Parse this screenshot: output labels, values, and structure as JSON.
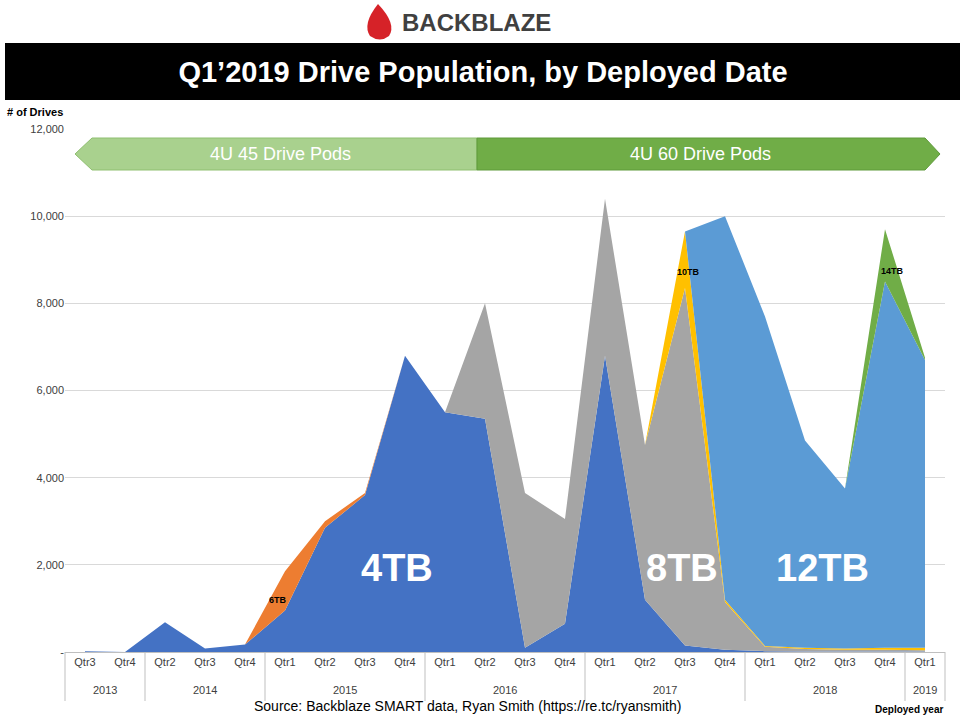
{
  "chart_data": {
    "type": "area",
    "title": "Q1’2019 Drive Population, by Deployed Date",
    "brand": "BACKBLAZE",
    "source": "Source: Backblaze SMART data, Ryan Smith (https://re.tc/ryansmith)",
    "annotations": [
      "4U 45 Drive Pods",
      "4U 60 Drive Pods"
    ],
    "y_label": "# of Drives",
    "x_label": "Deployed year",
    "categories": [
      "Qtr3",
      "Qtr4",
      "Qtr2",
      "Qtr3",
      "Qtr4",
      "Qtr1",
      "Qtr2",
      "Qtr3",
      "Qtr4",
      "Qtr1",
      "Qtr2",
      "Qtr3",
      "Qtr4",
      "Qtr1",
      "Qtr2",
      "Qtr3",
      "Qtr4",
      "Qtr1",
      "Qtr2",
      "Qtr3",
      "Qtr4",
      "Qtr1"
    ],
    "category_groups": [
      "2013",
      "2013",
      "2014",
      "2014",
      "2014",
      "2015",
      "2015",
      "2015",
      "2015",
      "2016",
      "2016",
      "2016",
      "2016",
      "2017",
      "2017",
      "2017",
      "2017",
      "2018",
      "2018",
      "2018",
      "2018",
      "2019"
    ],
    "stacked": true,
    "grid": true,
    "ylim": [
      0,
      12000
    ],
    "yticks": [
      {
        "value": 0,
        "label": "-"
      },
      {
        "value": 2000,
        "label": "2,000"
      },
      {
        "value": 4000,
        "label": "4,000"
      },
      {
        "value": 6000,
        "label": "6,000"
      },
      {
        "value": 8000,
        "label": "8,000"
      },
      {
        "value": 10000,
        "label": "10,000"
      },
      {
        "value": 12000,
        "label": "12,000"
      }
    ],
    "series": [
      {
        "name": "4TB",
        "color": "#4472c4",
        "values": [
          20,
          0,
          680,
          80,
          170,
          950,
          2850,
          3600,
          6800,
          5500,
          5350,
          100,
          650,
          6800,
          1200,
          150,
          50,
          20,
          10,
          10,
          10,
          10
        ]
      },
      {
        "name": "6TB",
        "color": "#ed7d31",
        "values": [
          0,
          0,
          0,
          0,
          0,
          900,
          150,
          50,
          0,
          0,
          0,
          0,
          0,
          0,
          0,
          0,
          0,
          0,
          0,
          0,
          0,
          0
        ]
      },
      {
        "name": "8TB",
        "color": "#a5a5a5",
        "values": [
          0,
          0,
          0,
          0,
          0,
          0,
          0,
          0,
          0,
          0,
          2650,
          3550,
          2400,
          3600,
          3550,
          8200,
          1100,
          100,
          60,
          40,
          40,
          30
        ]
      },
      {
        "name": "10TB",
        "color": "#ffc000",
        "values": [
          0,
          0,
          0,
          0,
          0,
          0,
          0,
          0,
          0,
          0,
          0,
          0,
          0,
          0,
          0,
          1300,
          50,
          20,
          30,
          30,
          50,
          60
        ]
      },
      {
        "name": "12TB",
        "color": "#5b9bd5",
        "values": [
          0,
          0,
          0,
          0,
          0,
          0,
          0,
          0,
          0,
          0,
          0,
          0,
          0,
          0,
          0,
          0,
          8800,
          7560,
          4750,
          3670,
          8400,
          6600
        ]
      },
      {
        "name": "14TB",
        "color": "#70ad47",
        "values": [
          0,
          0,
          0,
          0,
          0,
          0,
          0,
          0,
          0,
          0,
          0,
          0,
          0,
          0,
          0,
          0,
          0,
          0,
          0,
          0,
          1200,
          50
        ]
      }
    ]
  }
}
